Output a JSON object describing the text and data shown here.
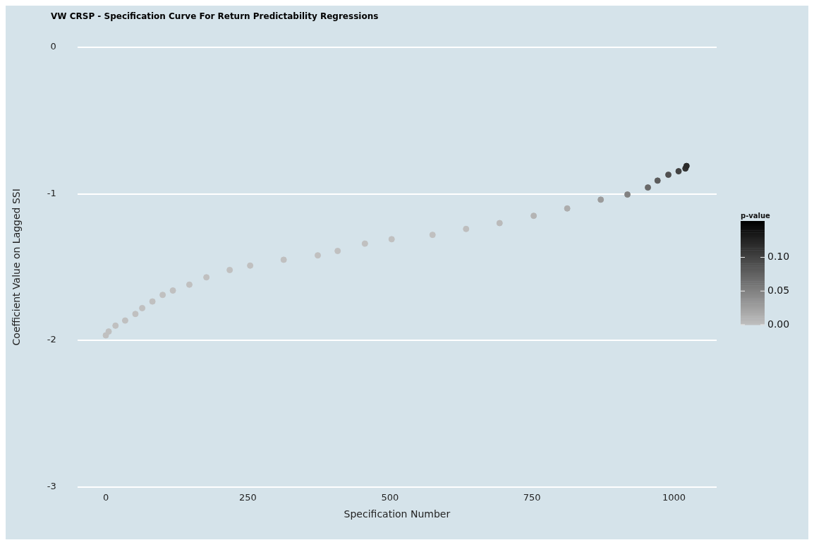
{
  "chart_data": {
    "type": "scatter",
    "title": "VW CRSP - Specification Curve For Return Predictability Regressions",
    "xlabel": "Specification Number",
    "ylabel": "Coefficient Value on Lagged SSI",
    "clabel": "p-value",
    "x": [
      0,
      5,
      17,
      34,
      52,
      64,
      82,
      100,
      118,
      147,
      177,
      218,
      254,
      313,
      373,
      408,
      456,
      503,
      575,
      634,
      693,
      753,
      812,
      871,
      918,
      954,
      971,
      990,
      1008,
      1020,
      1022
    ],
    "values": [
      -1.966,
      -1.94,
      -1.9,
      -1.865,
      -1.82,
      -1.78,
      -1.735,
      -1.69,
      -1.66,
      -1.62,
      -1.57,
      -1.52,
      -1.49,
      -1.45,
      -1.42,
      -1.39,
      -1.34,
      -1.31,
      -1.28,
      -1.24,
      -1.2,
      -1.15,
      -1.1,
      -1.04,
      -1.005,
      -0.957,
      -0.91,
      -0.87,
      -0.846,
      -0.827,
      -0.81
    ],
    "cvalues": [
      0,
      0,
      0,
      0,
      0,
      0,
      0,
      0,
      0,
      0,
      0,
      0,
      0,
      0,
      0,
      0,
      0,
      0,
      0,
      0.002,
      0.005,
      0.01,
      0.015,
      0.03,
      0.05,
      0.07,
      0.08,
      0.09,
      0.1,
      0.115,
      0.12
    ],
    "clim": [
      0,
      0.154
    ],
    "cticks": [
      {
        "value": 0,
        "label": "0.00"
      },
      {
        "value": 0.05,
        "label": "0.05"
      },
      {
        "value": 0.1,
        "label": "0.10"
      }
    ],
    "xlim": [
      -50,
      1075
    ],
    "ylim": [
      -3,
      0
    ],
    "xticks": [
      0,
      250,
      500,
      750,
      1000
    ],
    "yticks": [
      -3,
      -2,
      -1,
      0
    ],
    "grid": "y",
    "legend": false,
    "marker": "circle"
  }
}
